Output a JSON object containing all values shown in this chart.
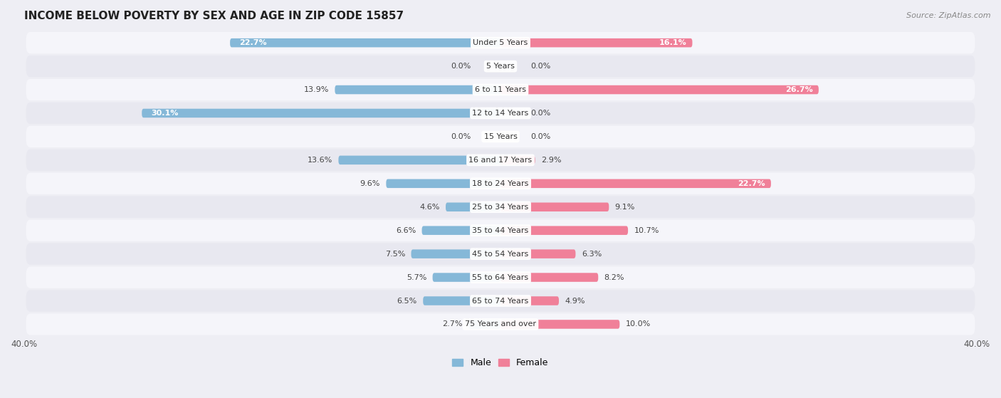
{
  "title": "INCOME BELOW POVERTY BY SEX AND AGE IN ZIP CODE 15857",
  "source": "Source: ZipAtlas.com",
  "categories": [
    "Under 5 Years",
    "5 Years",
    "6 to 11 Years",
    "12 to 14 Years",
    "15 Years",
    "16 and 17 Years",
    "18 to 24 Years",
    "25 to 34 Years",
    "35 to 44 Years",
    "45 to 54 Years",
    "55 to 64 Years",
    "65 to 74 Years",
    "75 Years and over"
  ],
  "male_values": [
    22.7,
    0.0,
    13.9,
    30.1,
    0.0,
    13.6,
    9.6,
    4.6,
    6.6,
    7.5,
    5.7,
    6.5,
    2.7
  ],
  "female_values": [
    16.1,
    0.0,
    26.7,
    0.0,
    0.0,
    2.9,
    22.7,
    9.1,
    10.7,
    6.3,
    8.2,
    4.9,
    10.0
  ],
  "male_color": "#85b8d8",
  "female_color": "#f08099",
  "male_label": "Male",
  "female_label": "Female",
  "xlim": 40.0,
  "background_color": "#eeeef4",
  "row_bg_odd": "#f5f5fa",
  "row_bg_even": "#e8e8f0",
  "title_fontsize": 11,
  "source_fontsize": 8,
  "label_fontsize": 8,
  "category_fontsize": 8
}
